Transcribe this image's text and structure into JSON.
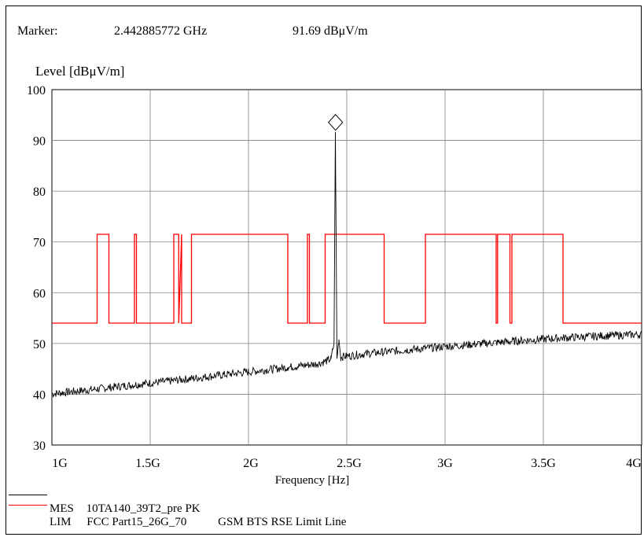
{
  "marker": {
    "label": "Marker:",
    "frequency": "2.442885772 GHz",
    "level": "91.69 dBμV/m"
  },
  "chart_data": {
    "type": "line",
    "title": "",
    "ylabel": "Level [dBμV/m]",
    "xlabel": "Frequency [Hz]",
    "xlim": [
      1.0,
      4.0
    ],
    "ylim": [
      30,
      100
    ],
    "x_ticks": [
      "1G",
      "1.5G",
      "2G",
      "2.5G",
      "3G",
      "3.5G",
      "4G"
    ],
    "y_ticks": [
      "30",
      "40",
      "50",
      "60",
      "70",
      "80",
      "90",
      "100"
    ],
    "grid": true,
    "marker_point": {
      "x": 2.4429,
      "y": 91.69
    },
    "series": [
      {
        "name": "MES",
        "color": "#000000",
        "x": [
          1.0,
          1.2,
          1.4,
          1.6,
          1.8,
          2.0,
          2.2,
          2.35,
          2.4,
          2.42,
          2.435,
          2.442,
          2.45,
          2.46,
          2.47,
          2.48,
          2.6,
          2.8,
          3.0,
          3.2,
          3.4,
          3.6,
          3.8,
          4.0
        ],
        "values": [
          40.1,
          40.9,
          41.8,
          42.6,
          43.5,
          44.4,
          45.3,
          46.0,
          46.6,
          47.0,
          50.0,
          91.69,
          47.0,
          50.8,
          47.2,
          47.4,
          48.0,
          48.7,
          49.4,
          50.0,
          50.6,
          51.1,
          51.5,
          51.8
        ]
      },
      {
        "name": "LIM",
        "color": "#ff0000",
        "x": [
          1.0,
          1.23,
          1.23,
          1.29,
          1.29,
          1.42,
          1.42,
          1.43,
          1.43,
          1.62,
          1.62,
          1.645,
          1.645,
          1.66,
          1.66,
          1.71,
          1.71,
          1.72,
          1.72,
          2.2,
          2.2,
          2.3,
          2.3,
          2.31,
          2.31,
          2.39,
          2.39,
          2.49,
          2.49,
          2.69,
          2.69,
          2.9,
          2.9,
          3.26,
          3.26,
          3.267,
          3.267,
          3.33,
          3.33,
          3.34,
          3.34,
          3.36,
          3.36,
          3.6,
          3.6,
          4.0
        ],
        "values": [
          54,
          54,
          71.5,
          71.5,
          54,
          54,
          71.5,
          71.5,
          54,
          54,
          71.5,
          71.5,
          54,
          71.5,
          54,
          54,
          71.5,
          71.5,
          71.5,
          71.5,
          54,
          54,
          71.5,
          71.5,
          54,
          54,
          71.5,
          71.5,
          71.5,
          71.5,
          54,
          54,
          71.5,
          71.5,
          54,
          54,
          71.5,
          71.5,
          54,
          54,
          71.5,
          71.5,
          71.5,
          71.5,
          54,
          54
        ]
      }
    ]
  },
  "legend": {
    "rows": [
      {
        "code": "MES",
        "name": "10TA140_39T2_pre PK",
        "note": ""
      },
      {
        "code": "LIM",
        "name": "FCC Part15_26G_70",
        "note": "GSM BTS RSE Limit Line"
      }
    ]
  }
}
